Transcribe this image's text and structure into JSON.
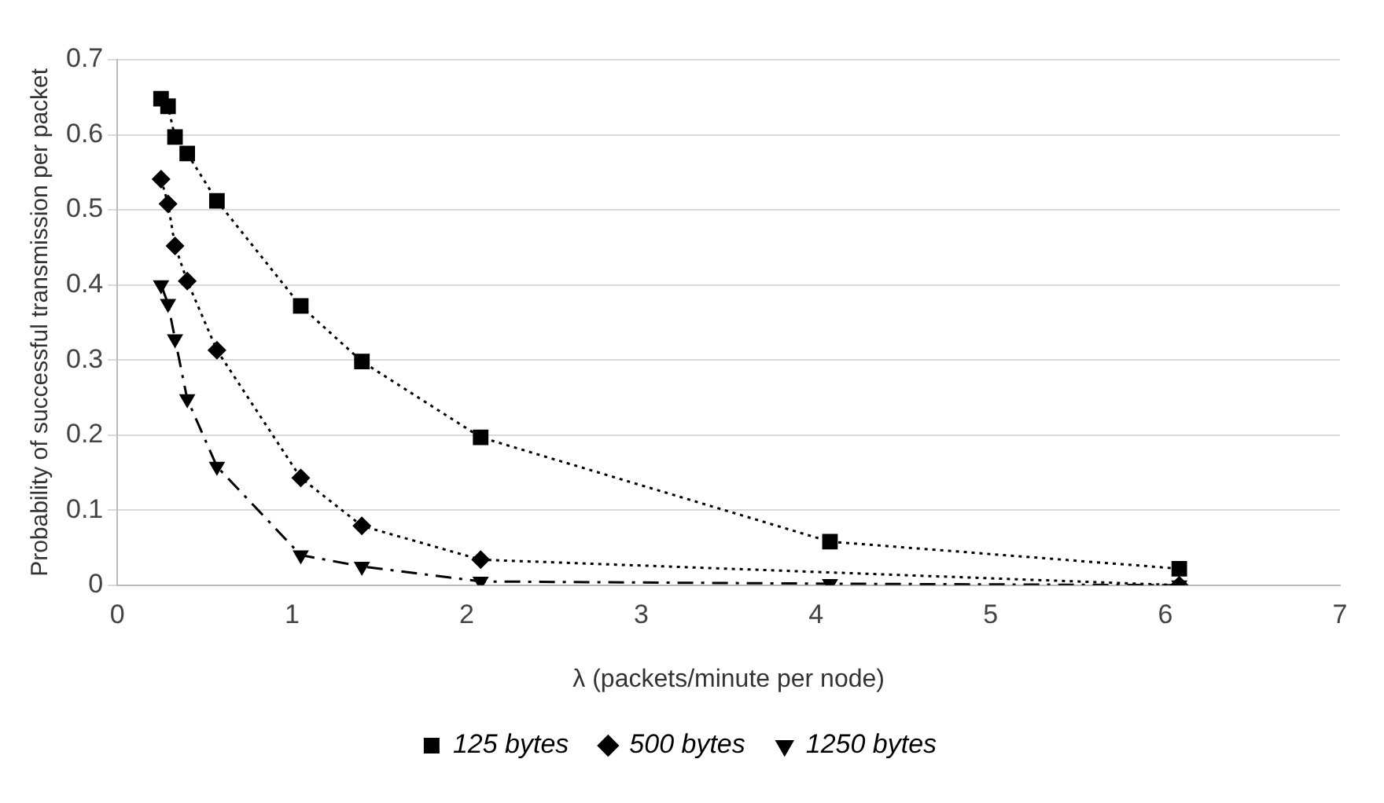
{
  "chart_data": {
    "type": "line",
    "xlabel": "λ (packets/minute per node)",
    "ylabel": "Probability of successful transmission per packet",
    "x": [
      0.25,
      0.29,
      0.33,
      0.4,
      0.57,
      1.05,
      1.4,
      2.08,
      4.08,
      6.08
    ],
    "series": [
      {
        "name": "125 bytes",
        "color": "#000000",
        "marker": "square",
        "line_style": "dotted",
        "values": [
          0.648,
          0.638,
          0.597,
          0.575,
          0.512,
          0.372,
          0.298,
          0.197,
          0.058,
          0.022
        ]
      },
      {
        "name": "500 bytes",
        "color": "#000000",
        "marker": "diamond",
        "line_style": "dotted",
        "values": [
          0.541,
          0.508,
          0.452,
          0.405,
          0.313,
          0.143,
          0.079,
          0.034,
          null,
          0.0
        ]
      },
      {
        "name": "1250 bytes",
        "color": "#000000",
        "marker": "triangle",
        "line_style": "dashed",
        "values": [
          0.4,
          0.375,
          0.328,
          0.248,
          0.158,
          0.04,
          0.025,
          0.005,
          0.002,
          0.0
        ]
      }
    ],
    "xlim": [
      0,
      7
    ],
    "xticks": [
      0,
      1,
      2,
      3,
      4,
      5,
      6,
      7
    ],
    "ylim": [
      0,
      0.7
    ],
    "yticks": [
      0,
      0.1,
      0.2,
      0.3,
      0.4,
      0.5,
      0.6,
      0.7
    ],
    "grid": "y",
    "legend": "bottom"
  }
}
